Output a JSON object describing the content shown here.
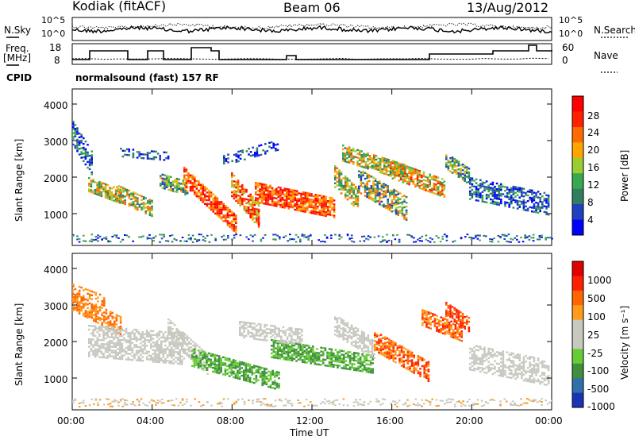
{
  "header": {
    "radar": "Kodiak (fitACF)",
    "beam": "Beam 06",
    "date": "13/Aug/2012"
  },
  "noise_panel": {
    "left_label": "N.Sky",
    "left_ticks": [
      "10^5",
      "10^0"
    ],
    "right_label": "N.Search",
    "right_ticks": [
      "10^5",
      "10^0"
    ]
  },
  "freq_panel": {
    "left_label_line1": "Freq.",
    "left_label_line2": "[MHz]",
    "left_ticks": [
      "18",
      "8"
    ],
    "right_label": "Nave",
    "right_ticks": [
      "60",
      "0"
    ]
  },
  "cpid_panel": {
    "label": "CPID",
    "text": "normalsound (fast) 157 RF"
  },
  "colors": {
    "power_scale": [
      "#0000ff",
      "#2040c0",
      "#2f7f5f",
      "#38a850",
      "#9acd32",
      "#ffa500",
      "#ff6a00",
      "#ff2000",
      "#ff0000"
    ],
    "velocity_scale": [
      "#1a33b3",
      "#2f6faa",
      "#3f8f3f",
      "#66cc33",
      "#c8c8c0",
      "#c8c8c0",
      "#ff9a1a",
      "#ff6600",
      "#ff2000",
      "#e00000"
    ]
  },
  "chart_data": [
    {
      "type": "heatmap",
      "panel": "power",
      "ylabel": "Slant Range [km]",
      "ylim": [
        180,
        4500
      ],
      "yticks": [
        "4000",
        "3000",
        "2000",
        "1000"
      ],
      "xlim": [
        "00:00",
        "24:00"
      ],
      "colorbar_label": "Power [dB]",
      "colorbar_ticks": [
        "28",
        "24",
        "20",
        "16",
        "12",
        "8",
        "4"
      ],
      "colorbar_range": [
        0,
        32
      ]
    },
    {
      "type": "heatmap",
      "panel": "velocity",
      "ylabel": "Slant Range [km]",
      "ylim": [
        180,
        4500
      ],
      "yticks": [
        "4000",
        "3000",
        "2000",
        "1000"
      ],
      "xlim": [
        "00:00",
        "24:00"
      ],
      "xticks": [
        "00:00",
        "04:00",
        "08:00",
        "12:00",
        "16:00",
        "20:00",
        "00:00"
      ],
      "xlabel": "Time UT",
      "colorbar_label": "Velocity [m s⁻¹]",
      "colorbar_ticks": [
        "1000",
        "500",
        "100",
        "25",
        "-25",
        "-100",
        "-500",
        "-1000"
      ]
    }
  ]
}
